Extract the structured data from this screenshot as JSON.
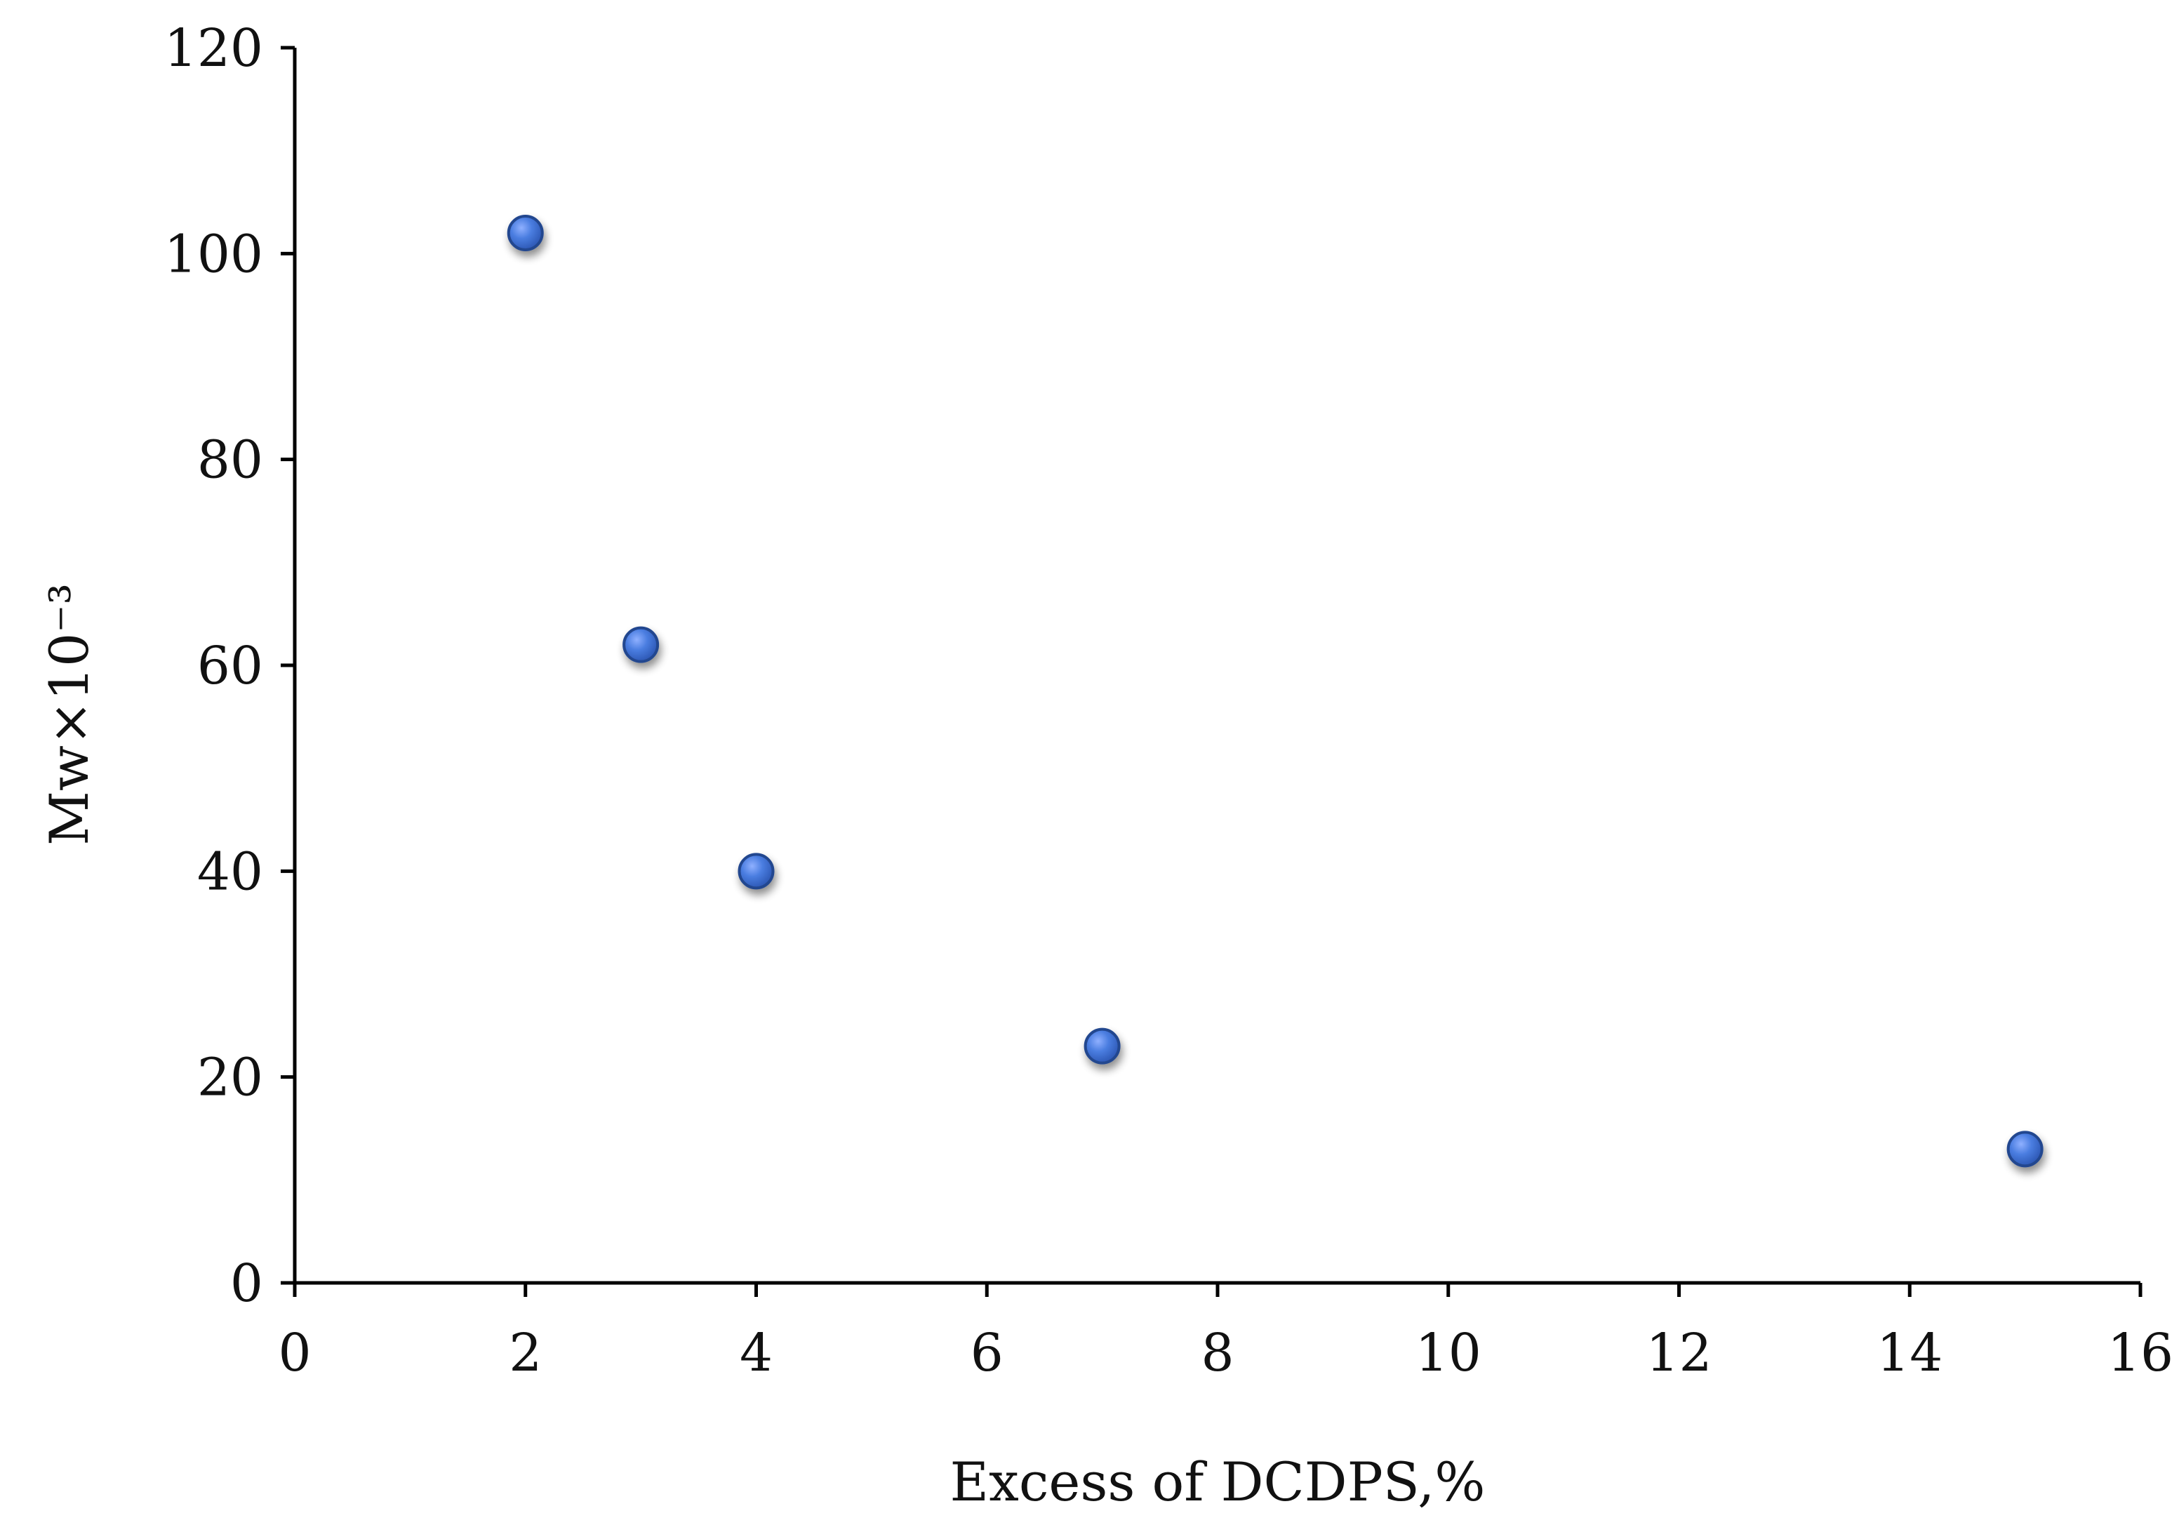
{
  "chart_data": {
    "type": "scatter",
    "title": "",
    "xlabel": "Excess of DCDPS,%",
    "ylabel": "Mw×10⁻³",
    "xlim": [
      0,
      16
    ],
    "ylim": [
      0,
      120
    ],
    "xticks": [
      0,
      2,
      4,
      6,
      8,
      10,
      12,
      14,
      16
    ],
    "yticks": [
      0,
      20,
      40,
      60,
      80,
      100,
      120
    ],
    "grid": false,
    "legend": "none",
    "marker_color": "#3f6fcf",
    "marker_edge_color": "#24468f",
    "series": [
      {
        "points": [
          {
            "x": 2,
            "y": 102
          },
          {
            "x": 3,
            "y": 62
          },
          {
            "x": 4,
            "y": 40
          },
          {
            "x": 7,
            "y": 23
          },
          {
            "x": 15,
            "y": 13
          }
        ]
      }
    ]
  }
}
